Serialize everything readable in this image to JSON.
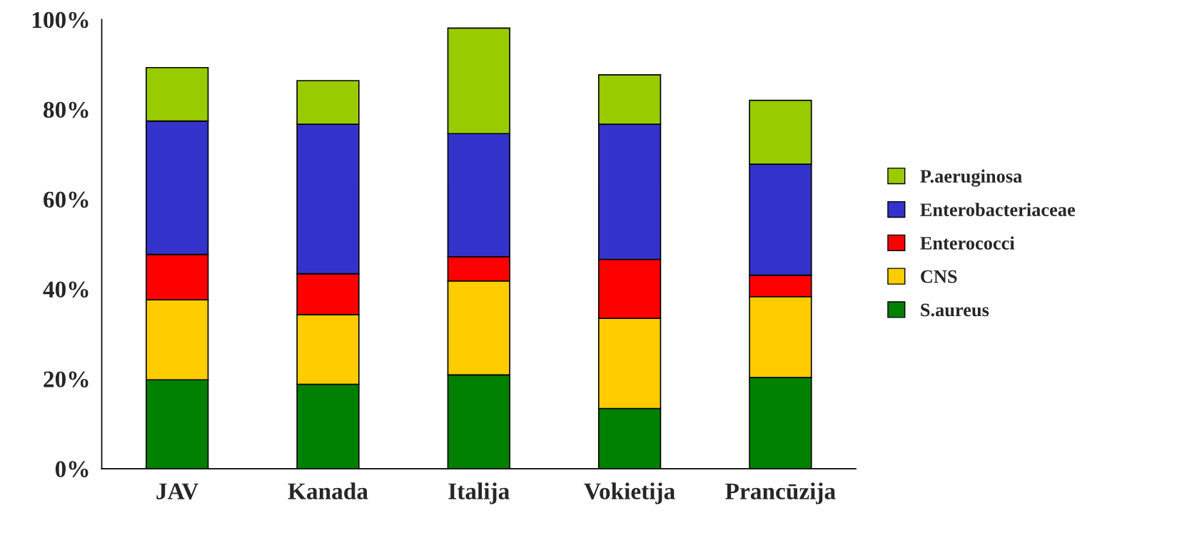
{
  "chart_data": {
    "type": "bar",
    "stacked": true,
    "categories": [
      "JAV",
      "Kanada",
      "Italija",
      "Vokietija",
      "Prancūzija"
    ],
    "series": [
      {
        "name": "S.aureus",
        "color": "#008000",
        "values": [
          19.8,
          18.8,
          20.9,
          13.4,
          20.3
        ]
      },
      {
        "name": "CNS",
        "color": "#ffcc00",
        "values": [
          17.8,
          15.5,
          20.9,
          20.1,
          18.0
        ]
      },
      {
        "name": "Enterococci",
        "color": "#ff0000",
        "values": [
          10.1,
          9.1,
          5.4,
          13.1,
          4.8
        ]
      },
      {
        "name": "Enterobacteriaceae",
        "color": "#3333cc",
        "values": [
          29.7,
          33.3,
          27.4,
          30.1,
          24.7
        ]
      },
      {
        "name": "P.aeruginosa",
        "color": "#99cc00",
        "values": [
          11.9,
          9.7,
          23.5,
          11.0,
          14.2
        ]
      }
    ],
    "ylim": [
      0,
      100
    ],
    "yticks": [
      {
        "value": 0,
        "label": "0%"
      },
      {
        "value": 20,
        "label": "20%"
      },
      {
        "value": 40,
        "label": "40%"
      },
      {
        "value": 60,
        "label": "60%"
      },
      {
        "value": 80,
        "label": "80%"
      },
      {
        "value": 100,
        "label": "100%"
      }
    ],
    "grid": false,
    "legend": "right"
  }
}
